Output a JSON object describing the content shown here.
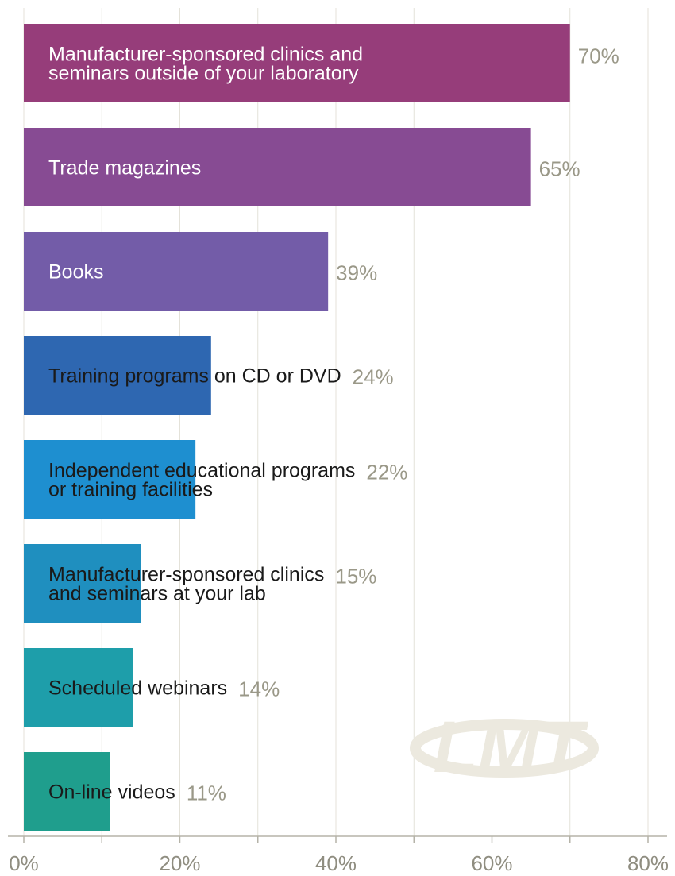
{
  "chart_data": {
    "type": "bar",
    "orientation": "horizontal",
    "title": "",
    "xlabel": "",
    "ylabel": "",
    "xlim": [
      0,
      80
    ],
    "x_ticks": [
      "0%",
      "20%",
      "40%",
      "60%",
      "80%"
    ],
    "grid": true,
    "legend": "none",
    "categories": [
      "Manufacturer-sponsored clinics and seminars outside of your laboratory",
      "Trade magazines",
      "Books",
      "Training programs on CD or DVD",
      "Independent educational programs or training facilities",
      "Manufacturer-sponsored clinics and seminars at your lab",
      "Scheduled webinars",
      "On-line videos"
    ],
    "category_lines": [
      [
        "Manufacturer-sponsored clinics and",
        "seminars outside of your laboratory"
      ],
      [
        "Trade magazines"
      ],
      [
        "Books"
      ],
      [
        "Training programs on CD or DVD"
      ],
      [
        "Independent educational programs",
        "or training facilities"
      ],
      [
        "Manufacturer-sponsored clinics",
        "and seminars at your lab"
      ],
      [
        "Scheduled webinars"
      ],
      [
        "On-line videos"
      ]
    ],
    "values": [
      70,
      65,
      39,
      24,
      22,
      15,
      14,
      11
    ],
    "value_labels": [
      "70%",
      "65%",
      "39%",
      "24%",
      "22%",
      "15%",
      "14%",
      "11%"
    ],
    "bar_colors": [
      "#963d7a",
      "#874b93",
      "#735ca8",
      "#2e67b1",
      "#1e8fd0",
      "#1f8fbf",
      "#1e9eaa",
      "#1f9e8d"
    ],
    "label_colors": [
      "#ffffff",
      "#ffffff",
      "#ffffff",
      "#1a1a1a",
      "#1a1a1a",
      "#1a1a1a",
      "#1a1a1a",
      "#1a1a1a"
    ]
  },
  "watermark": {
    "text": "LMT"
  }
}
